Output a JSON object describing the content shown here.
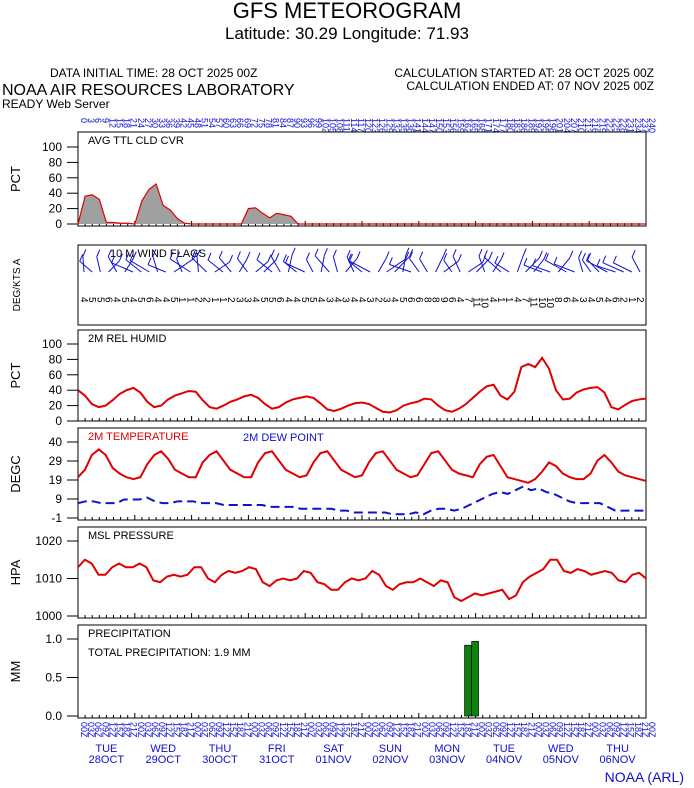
{
  "header": {
    "title": "GFS METEOROGRAM",
    "latlon": "Latitude: 30.29 Longitude:  71.93",
    "init_time": "DATA INITIAL TIME: 28 OCT 2025 00Z",
    "calc_started": "CALCULATION STARTED AT: 28 OCT 2025 00Z",
    "calc_ended": "CALCULATION ENDED AT: 07 NOV 2025 00Z",
    "org": "NOAA AIR RESOURCES LABORATORY",
    "server": "READY Web Server",
    "footer": "NOAA (ARL)"
  },
  "colors": {
    "red": "#e00000",
    "blue": "#1010cc",
    "gray": "#a0a0a0",
    "green": "#108010"
  },
  "top_hour_labels": [
    "0",
    "3",
    "6",
    "9",
    "12",
    "15",
    "18",
    "21",
    "24",
    "27",
    "30",
    "33",
    "36",
    "39",
    "42",
    "45",
    "48",
    "51",
    "54",
    "57",
    "60",
    "63",
    "66",
    "69",
    "72",
    "75",
    "78",
    "81",
    "84",
    "87",
    "90",
    "93",
    "96",
    "99",
    "102",
    "105",
    "108",
    "111",
    "114",
    "117",
    "120",
    "123",
    "126",
    "129",
    "132",
    "135",
    "138",
    "141",
    "144",
    "147",
    "150",
    "153",
    "156",
    "159",
    "162",
    "165",
    "168",
    "171",
    "174",
    "177",
    "180",
    "183",
    "186",
    "189",
    "192",
    "195",
    "198",
    "201",
    "204",
    "207",
    "210",
    "213",
    "216",
    "219",
    "222",
    "225",
    "228",
    "231",
    "234",
    "237",
    "240"
  ],
  "bottom_hour_labels": [
    "00Z",
    "03Z",
    "06Z",
    "09Z",
    "12Z",
    "15Z",
    "18Z",
    "21Z"
  ],
  "days": [
    {
      "dow": "TUE",
      "date": "28OCT"
    },
    {
      "dow": "WED",
      "date": "29OCT"
    },
    {
      "dow": "THU",
      "date": "30OCT"
    },
    {
      "dow": "FRI",
      "date": "31OCT"
    },
    {
      "dow": "SAT",
      "date": "01NOV"
    },
    {
      "dow": "SUN",
      "date": "02NOV"
    },
    {
      "dow": "MON",
      "date": "03NOV"
    },
    {
      "dow": "TUE",
      "date": "04NOV"
    },
    {
      "dow": "WED",
      "date": "05NOV"
    },
    {
      "dow": "THU",
      "date": "06NOV"
    }
  ],
  "chart_data": [
    {
      "type": "area",
      "title": "AVG TTL CLD CVR",
      "ylabel": "PCT",
      "ylim": [
        0,
        100
      ],
      "yticks": [
        "100",
        "80",
        "60",
        "40",
        "20",
        "0"
      ],
      "x_hours_step": 3,
      "values": [
        0,
        36,
        38,
        32,
        2,
        2,
        1,
        1,
        0,
        30,
        45,
        52,
        24,
        18,
        7,
        1,
        0,
        0,
        0,
        0,
        0,
        0,
        0,
        0,
        20,
        21,
        14,
        8,
        14,
        12,
        10,
        0,
        0,
        0,
        0,
        0,
        0,
        0,
        0,
        0,
        0,
        0,
        0,
        0,
        0,
        0,
        0,
        0,
        0,
        0,
        0,
        0,
        0,
        0,
        0,
        0,
        0,
        0,
        0,
        0,
        0,
        0,
        0,
        0,
        0,
        0,
        0,
        0,
        0,
        0,
        0,
        0,
        0,
        0,
        0,
        0,
        0,
        0,
        0,
        0,
        0
      ]
    },
    {
      "type": "wind_flags",
      "title": "10 M  WIND FLAGS",
      "ylabel": "DEG/KTS  A",
      "speed_labels": [
        "4",
        "5",
        "5",
        "6",
        "4",
        "5",
        "4",
        "5",
        "6",
        "4",
        "4",
        "5",
        "1",
        "1",
        "2",
        "2",
        "1",
        "1",
        "2",
        "3",
        "3",
        "4",
        "5",
        "5",
        "6",
        "4",
        "4",
        "5",
        "5",
        "4",
        "3",
        "4",
        "3",
        "4",
        "4",
        "3",
        "2",
        "3",
        "4",
        "5",
        "6",
        "6",
        "8",
        "8",
        "9",
        "6",
        "4",
        "7",
        "11",
        "10",
        "4",
        "1",
        "1",
        "4",
        "7",
        "11",
        "10",
        "10",
        "8",
        "6",
        "4",
        "3",
        "4",
        "5",
        "4",
        "6",
        "2",
        "1",
        "2"
      ]
    },
    {
      "type": "line",
      "title": "2M REL HUMID",
      "ylabel": "PCT",
      "ylim": [
        0,
        100
      ],
      "yticks": [
        "100",
        "80",
        "60",
        "40",
        "20",
        "0"
      ],
      "series": [
        {
          "name": "RH",
          "color": "red",
          "values": [
            40,
            33,
            22,
            18,
            20,
            27,
            35,
            40,
            43,
            37,
            25,
            18,
            20,
            28,
            33,
            36,
            39,
            38,
            27,
            18,
            16,
            20,
            25,
            28,
            32,
            34,
            30,
            22,
            16,
            18,
            24,
            28,
            30,
            32,
            30,
            23,
            15,
            13,
            16,
            20,
            23,
            24,
            22,
            17,
            12,
            11,
            14,
            20,
            23,
            25,
            29,
            28,
            20,
            14,
            12,
            16,
            22,
            30,
            38,
            45,
            47,
            33,
            28,
            38,
            70,
            74,
            70,
            82,
            68,
            40,
            28,
            29,
            37,
            41,
            43,
            44,
            37,
            18,
            15,
            21,
            26,
            28,
            29
          ]
        }
      ]
    },
    {
      "type": "line",
      "title": "2M TEMPERATURE",
      "title2": "2M  DEW POINT",
      "ylabel": "DEGC",
      "ylim": [
        -1,
        40
      ],
      "yticks": [
        "40",
        "29",
        "19",
        "9",
        "-1"
      ],
      "series": [
        {
          "name": "2M TEMPERATURE",
          "color": "red",
          "values": [
            21,
            25,
            33,
            36,
            33,
            26,
            23,
            21,
            20,
            21,
            28,
            33,
            35,
            31,
            25,
            23,
            21,
            21,
            29,
            33,
            35,
            30,
            25,
            23,
            21,
            21,
            29,
            34,
            35,
            30,
            25,
            23,
            21,
            22,
            29,
            34,
            35,
            30,
            25,
            23,
            21,
            22,
            29,
            34,
            35,
            30,
            25,
            23,
            21,
            22,
            28,
            34,
            35,
            30,
            25,
            23,
            22,
            21,
            28,
            32,
            33,
            27,
            21,
            20,
            19,
            18,
            20,
            24,
            29,
            27,
            23,
            21,
            20,
            20,
            23,
            30,
            33,
            29,
            24,
            22,
            21,
            20,
            19
          ]
        },
        {
          "name": "2M  DEW POINT",
          "color": "blue",
          "dashed": true,
          "values": [
            7,
            8,
            8,
            7,
            7,
            7,
            9,
            9,
            9,
            10,
            8,
            7,
            7,
            8,
            8,
            8,
            7,
            7,
            7,
            6,
            6,
            6,
            6,
            6,
            6,
            5,
            5,
            5,
            5,
            4,
            4,
            4,
            4,
            4,
            3,
            3,
            2,
            2,
            2,
            2,
            2,
            1,
            1,
            1,
            2,
            1,
            3,
            4,
            4,
            3,
            4,
            6,
            8,
            10,
            12,
            13,
            12,
            14,
            16,
            14,
            15,
            13,
            12,
            10,
            8,
            7,
            7,
            7,
            7,
            5,
            3,
            3,
            3,
            3,
            3
          ]
        }
      ]
    },
    {
      "type": "line",
      "title": "MSL PRESSURE",
      "ylabel": "HPA",
      "ylim": [
        1000,
        1020
      ],
      "yticks": [
        "1020",
        "1010",
        "1000"
      ],
      "series": [
        {
          "name": "MSL PRESSURE",
          "color": "red",
          "values": [
            1013,
            1015,
            1014,
            1011,
            1011,
            1013,
            1014,
            1013,
            1013,
            1014,
            1013,
            1009.5,
            1009,
            1010.5,
            1011,
            1010.5,
            1011,
            1013,
            1013,
            1010,
            1009,
            1011,
            1012,
            1011.5,
            1012,
            1013,
            1012.5,
            1009,
            1008,
            1009.5,
            1010,
            1009.5,
            1010,
            1012,
            1011.5,
            1009,
            1008.5,
            1007,
            1007,
            1009,
            1010,
            1009.5,
            1010,
            1012,
            1011,
            1008,
            1007,
            1008.5,
            1009,
            1009,
            1010,
            1009,
            1008,
            1009.5,
            1009,
            1005,
            1004,
            1005,
            1006,
            1005.5,
            1006,
            1006.5,
            1007,
            1004.5,
            1005.5,
            1009,
            1010.5,
            1011.5,
            1012.5,
            1015,
            1015,
            1012,
            1011.5,
            1012.5,
            1012,
            1011,
            1011.5,
            1012,
            1011.5,
            1009.5,
            1009,
            1011,
            1011.5,
            1010
          ]
        }
      ]
    },
    {
      "type": "bar",
      "title": "PRECIPITATION",
      "total_label": "TOTAL PRECIPITATION:   1.9 MM",
      "ylabel": "MM",
      "ylim": [
        0,
        1.0
      ],
      "yticks": [
        "1.0",
        "0.5",
        "0.0"
      ],
      "bars": [
        {
          "hour": 165,
          "value": 0.92
        },
        {
          "hour": 168,
          "value": 0.97
        }
      ]
    }
  ]
}
